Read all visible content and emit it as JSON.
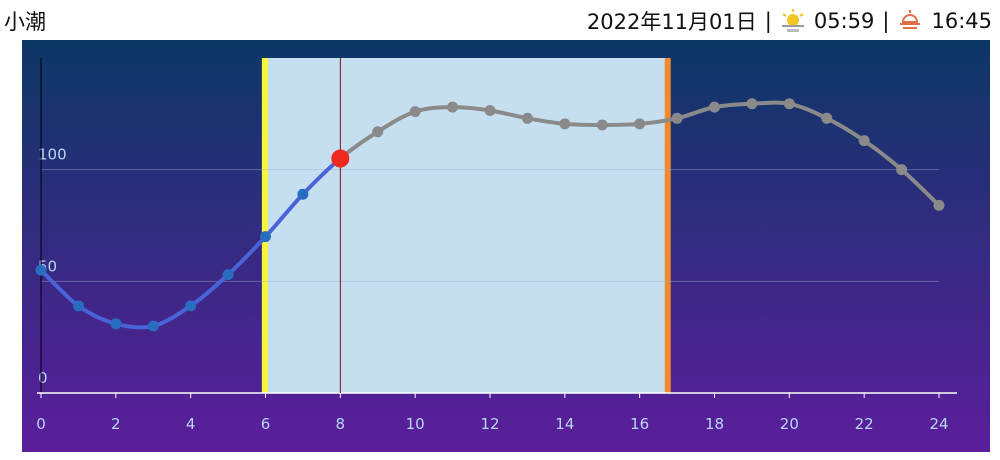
{
  "header": {
    "tide": "小潮",
    "date": "2022年11月01日",
    "separator": "|",
    "sunrise": "05:59",
    "sunset": "16:45"
  },
  "chart_data": {
    "type": "line",
    "x": [
      0,
      1,
      2,
      3,
      4,
      5,
      6,
      7,
      8,
      9,
      10,
      11,
      12,
      13,
      14,
      15,
      16,
      17,
      18,
      19,
      20,
      21,
      22,
      23,
      24
    ],
    "series": [
      {
        "values": [
          55,
          39,
          31,
          30,
          39,
          53,
          70,
          89,
          105,
          117,
          126,
          128,
          126.5,
          123,
          120.5,
          120,
          120.5,
          123,
          128,
          129.5,
          129.5,
          123,
          113,
          100,
          84
        ],
        "color": "#4a63d8",
        "future_color": "#8a8a8a"
      }
    ],
    "now": 8,
    "xlim": [
      0,
      24
    ],
    "xticks": [
      0,
      2,
      4,
      6,
      8,
      10,
      12,
      14,
      16,
      18,
      20,
      22,
      24
    ],
    "ylim": [
      0,
      150
    ],
    "yticks": [
      0,
      50,
      100
    ],
    "grid": true
  }
}
